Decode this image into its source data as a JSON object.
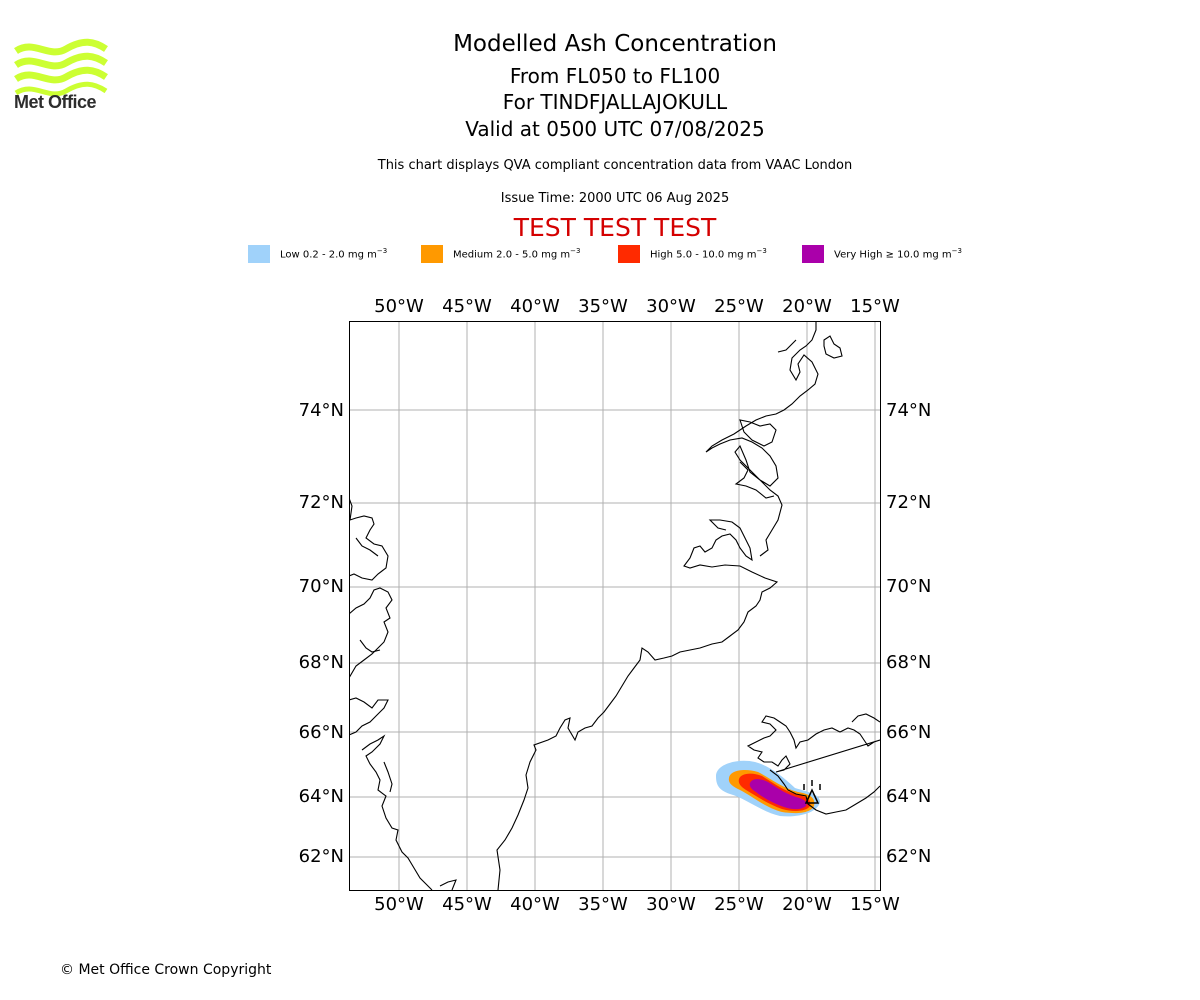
{
  "logo": {
    "text": "Met Office",
    "color": "#ccff33"
  },
  "header": {
    "title": "Modelled Ash Concentration",
    "flight_levels": "From FL050 to FL100",
    "volcano": "For TINDFJALLAJOKULL",
    "valid": "Valid at 0500 UTC 07/08/2025",
    "description": "This chart displays QVA compliant concentration data from VAAC London",
    "issue_time": "Issue Time: 2000 UTC 06 Aug 2025",
    "test_banner": "TEST TEST TEST"
  },
  "legend": [
    {
      "label": "Low 0.2 - 2.0 mg m",
      "color": "#a0d2fa"
    },
    {
      "label": "Medium 2.0 - 5.0 mg m",
      "color": "#ff9900"
    },
    {
      "label": "High 5.0 - 10.0 mg m",
      "color": "#ff2a00"
    },
    {
      "label": "Very High  ≥  10.0 mg m",
      "color": "#aa00aa"
    }
  ],
  "legend_unit_exp": "−3",
  "map": {
    "lon_ticks": [
      "50°W",
      "45°W",
      "40°W",
      "35°W",
      "30°W",
      "25°W",
      "20°W",
      "15°W"
    ],
    "lat_ticks": [
      "74°N",
      "72°N",
      "70°N",
      "68°N",
      "66°N",
      "64°N",
      "62°N"
    ],
    "ash_colors": {
      "low": "#a0d2fa",
      "medium": "#ff9900",
      "high": "#ff2a00",
      "very_high": "#aa00aa"
    },
    "volcano_marker": "triangle-icon"
  },
  "footer": {
    "copyright": "© Met Office Crown Copyright"
  }
}
